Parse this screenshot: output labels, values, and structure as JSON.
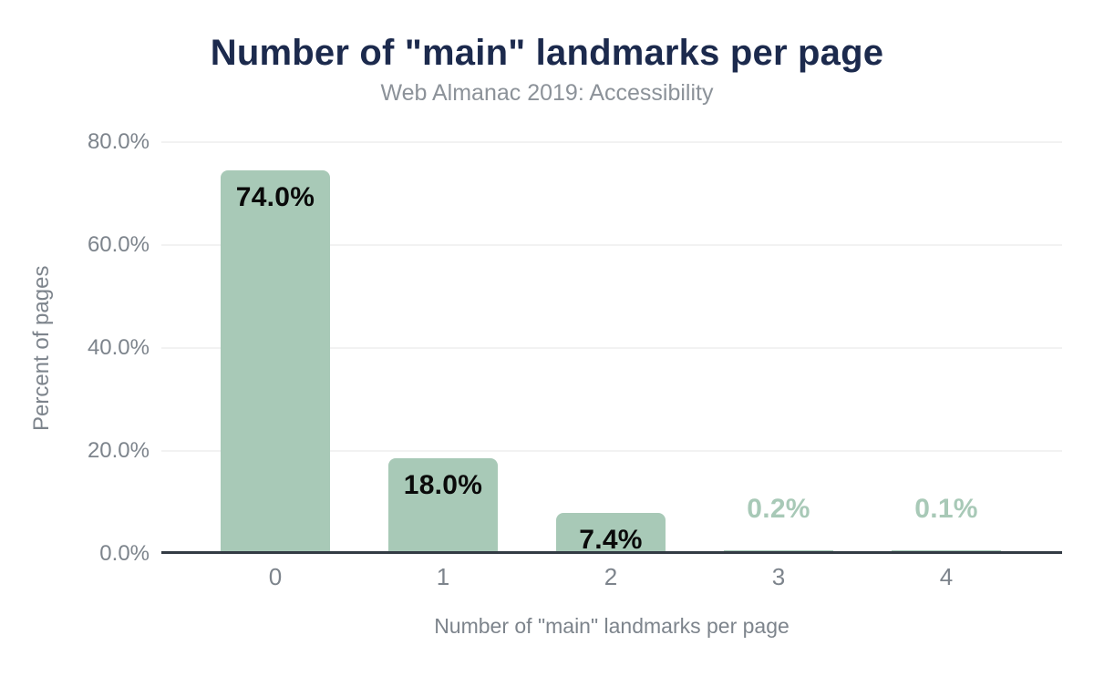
{
  "chart_data": {
    "type": "bar",
    "title": "Number of \"main\" landmarks per page",
    "subtitle": "Web Almanac 2019: Accessibility",
    "xlabel": "Number of \"main\" landmarks per page",
    "ylabel": "Percent of pages",
    "categories": [
      "0",
      "1",
      "2",
      "3",
      "4"
    ],
    "values": [
      74.0,
      18.0,
      7.4,
      0.2,
      0.1
    ],
    "value_labels": [
      "74.0%",
      "18.0%",
      "7.4%",
      "0.2%",
      "0.1%"
    ],
    "ylim": [
      0,
      80
    ],
    "yticks": [
      {
        "label": "0.0%",
        "value": 0
      },
      {
        "label": "20.0%",
        "value": 20
      },
      {
        "label": "40.0%",
        "value": 40
      },
      {
        "label": "60.0%",
        "value": 60
      },
      {
        "label": "80.0%",
        "value": 80
      }
    ],
    "grid": "horizontal",
    "legend": "none",
    "colors": {
      "background": "#ffffff",
      "bar": "#a8c9b7",
      "label_inside": "#0a0a0a",
      "label_outside": "#a8c9b7",
      "title": "#1c2a4d",
      "subtitle": "#8c9299",
      "axis_text": "#7d848c",
      "gridline": "#f2f2f2",
      "baseline": "#333b44"
    }
  }
}
